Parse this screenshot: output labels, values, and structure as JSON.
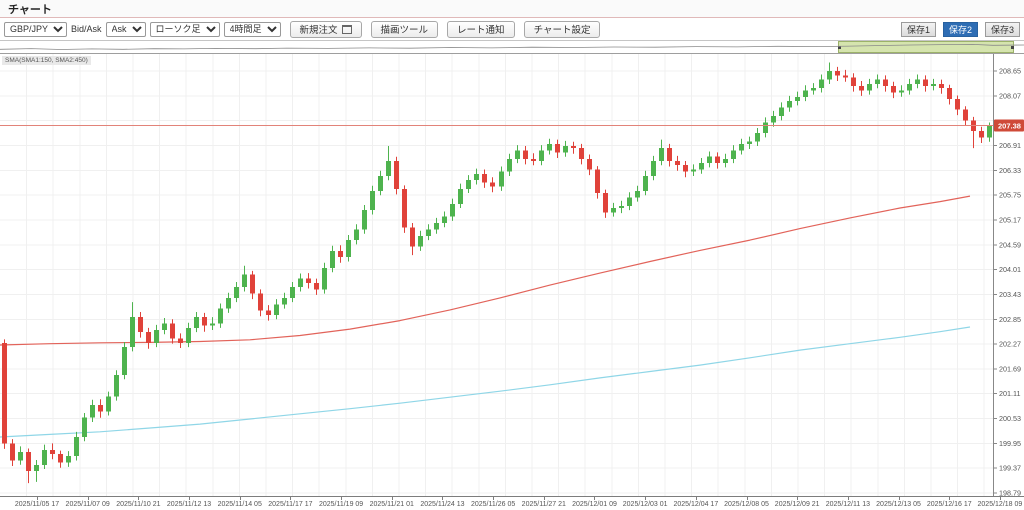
{
  "window": {
    "title": "チャート"
  },
  "toolbar": {
    "symbol": "GBP/JPY",
    "bid_ask_label": "Bid/Ask",
    "bid_ask": "Ask",
    "chart_type": "ローソク足",
    "timeframe": "4時間足",
    "buttons": {
      "new_order": "新規注文",
      "draw_tools": "描画ツール",
      "rate_alert": "レート通知",
      "chart_settings": "チャート設定"
    },
    "save_buttons": [
      {
        "label": "保存1",
        "active": false
      },
      {
        "label": "保存2",
        "active": true
      },
      {
        "label": "保存3",
        "active": false
      }
    ]
  },
  "minimap": {
    "selection_start": 0.818,
    "selection_end": 0.99,
    "spark": [
      [
        0,
        0.7
      ],
      [
        0.03,
        0.62
      ],
      [
        0.06,
        0.72
      ],
      [
        0.09,
        0.66
      ],
      [
        0.12,
        0.7
      ],
      [
        0.15,
        0.63
      ],
      [
        0.18,
        0.66
      ],
      [
        0.21,
        0.6
      ],
      [
        0.25,
        0.63
      ],
      [
        0.28,
        0.57
      ],
      [
        0.32,
        0.6
      ],
      [
        0.36,
        0.54
      ],
      [
        0.4,
        0.58
      ],
      [
        0.44,
        0.5
      ],
      [
        0.48,
        0.54
      ],
      [
        0.52,
        0.47
      ],
      [
        0.56,
        0.5
      ],
      [
        0.6,
        0.44
      ],
      [
        0.64,
        0.47
      ],
      [
        0.68,
        0.4
      ],
      [
        0.72,
        0.43
      ],
      [
        0.76,
        0.37
      ],
      [
        0.8,
        0.4
      ],
      [
        0.83,
        0.34
      ],
      [
        0.86,
        0.28
      ],
      [
        0.89,
        0.22
      ],
      [
        0.92,
        0.18
      ],
      [
        0.95,
        0.16
      ],
      [
        0.97,
        0.26
      ],
      [
        1.0,
        0.22
      ]
    ]
  },
  "chart_data": {
    "type": "candlestick",
    "symbol": "GBP/JPY",
    "timeframe": "4時間足",
    "overlay_label": "SMA(SMA1:150, SMA2:450)",
    "ylim": [
      198.72,
      209.05
    ],
    "y_ticks": [
      208.65,
      208.07,
      207.49,
      206.91,
      206.33,
      205.75,
      205.17,
      204.59,
      204.01,
      203.43,
      202.85,
      202.27,
      201.69,
      201.11,
      200.53,
      199.95,
      199.37,
      198.79
    ],
    "x_labels": [
      "2025/11/05 17",
      "2025/11/07 09",
      "2025/11/10 21",
      "2025/11/12 13",
      "2025/11/14 05",
      "2025/11/17 17",
      "2025/11/19 09",
      "2025/11/21 01",
      "2025/11/24 13",
      "2025/11/26 05",
      "2025/11/27 21",
      "2025/12/01 09",
      "2025/12/03 01",
      "2025/12/04 17",
      "2025/12/08 05",
      "2025/12/09 21",
      "2025/12/11 13",
      "2025/12/13 05",
      "2025/12/16 17",
      "2025/12/18 09"
    ],
    "current_price": 207.38,
    "grid": true,
    "legend": "none",
    "candles": [
      [
        202.3,
        202.38,
        199.82,
        199.95
      ],
      [
        199.95,
        200.05,
        199.42,
        199.55
      ],
      [
        199.55,
        199.88,
        199.45,
        199.75
      ],
      [
        199.75,
        199.83,
        199.02,
        199.3
      ],
      [
        199.3,
        199.56,
        199.05,
        199.45
      ],
      [
        199.45,
        199.92,
        199.35,
        199.8
      ],
      [
        199.8,
        199.95,
        199.58,
        199.7
      ],
      [
        199.7,
        199.78,
        199.38,
        199.5
      ],
      [
        199.5,
        199.77,
        199.4,
        199.65
      ],
      [
        199.65,
        200.22,
        199.55,
        200.1
      ],
      [
        200.1,
        200.66,
        200.0,
        200.55
      ],
      [
        200.55,
        200.97,
        200.45,
        200.85
      ],
      [
        200.85,
        200.98,
        200.55,
        200.7
      ],
      [
        200.7,
        201.16,
        200.6,
        201.05
      ],
      [
        201.05,
        201.66,
        200.95,
        201.55
      ],
      [
        201.55,
        202.32,
        201.45,
        202.2
      ],
      [
        202.2,
        203.25,
        202.1,
        202.9
      ],
      [
        202.9,
        203.02,
        202.42,
        202.55
      ],
      [
        202.55,
        202.65,
        202.16,
        202.3
      ],
      [
        202.3,
        202.72,
        202.2,
        202.6
      ],
      [
        202.6,
        202.88,
        202.5,
        202.75
      ],
      [
        202.75,
        202.85,
        202.28,
        202.4
      ],
      [
        202.4,
        202.52,
        202.18,
        202.3
      ],
      [
        202.3,
        202.77,
        202.2,
        202.65
      ],
      [
        202.65,
        203.02,
        202.55,
        202.9
      ],
      [
        202.9,
        203.0,
        202.56,
        202.7
      ],
      [
        202.7,
        202.9,
        202.6,
        202.75
      ],
      [
        202.75,
        203.22,
        202.65,
        203.1
      ],
      [
        203.1,
        203.47,
        203.0,
        203.35
      ],
      [
        203.35,
        203.72,
        203.25,
        203.6
      ],
      [
        203.6,
        204.1,
        203.5,
        203.9
      ],
      [
        203.9,
        203.98,
        203.32,
        203.45
      ],
      [
        203.45,
        203.55,
        202.92,
        203.05
      ],
      [
        203.05,
        203.18,
        202.82,
        202.95
      ],
      [
        202.95,
        203.32,
        202.85,
        203.2
      ],
      [
        203.2,
        203.47,
        203.1,
        203.35
      ],
      [
        203.35,
        203.72,
        203.25,
        203.6
      ],
      [
        203.6,
        203.92,
        203.5,
        203.8
      ],
      [
        203.8,
        203.93,
        203.57,
        203.7
      ],
      [
        203.7,
        203.8,
        203.42,
        203.55
      ],
      [
        203.55,
        204.17,
        203.45,
        204.05
      ],
      [
        204.05,
        204.57,
        203.95,
        204.45
      ],
      [
        204.45,
        204.58,
        204.17,
        204.3
      ],
      [
        204.3,
        204.82,
        204.2,
        204.7
      ],
      [
        204.7,
        205.07,
        204.6,
        204.95
      ],
      [
        204.95,
        205.52,
        204.85,
        205.4
      ],
      [
        205.4,
        205.97,
        205.3,
        205.85
      ],
      [
        205.85,
        206.32,
        205.75,
        206.2
      ],
      [
        206.2,
        206.9,
        206.1,
        206.55
      ],
      [
        206.55,
        206.65,
        205.77,
        205.9
      ],
      [
        205.9,
        205.98,
        204.87,
        205.0
      ],
      [
        205.0,
        205.1,
        204.35,
        204.55
      ],
      [
        204.55,
        204.92,
        204.45,
        204.8
      ],
      [
        204.8,
        205.07,
        204.7,
        204.95
      ],
      [
        204.95,
        205.22,
        204.85,
        205.1
      ],
      [
        205.1,
        205.37,
        205.0,
        205.25
      ],
      [
        205.25,
        205.67,
        205.15,
        205.55
      ],
      [
        205.55,
        206.02,
        205.45,
        205.9
      ],
      [
        205.9,
        206.22,
        205.8,
        206.1
      ],
      [
        206.1,
        206.37,
        206.0,
        206.25
      ],
      [
        206.25,
        206.35,
        205.92,
        206.05
      ],
      [
        206.05,
        206.17,
        205.82,
        205.95
      ],
      [
        205.95,
        206.42,
        205.85,
        206.3
      ],
      [
        206.3,
        206.72,
        206.2,
        206.6
      ],
      [
        206.6,
        206.92,
        206.5,
        206.8
      ],
      [
        206.8,
        206.9,
        206.47,
        206.6
      ],
      [
        206.6,
        206.73,
        206.45,
        206.55
      ],
      [
        206.55,
        206.92,
        206.45,
        206.8
      ],
      [
        206.8,
        207.07,
        206.7,
        206.95
      ],
      [
        206.95,
        207.05,
        206.62,
        206.75
      ],
      [
        206.75,
        207.02,
        206.65,
        206.9
      ],
      [
        206.9,
        207.0,
        206.72,
        206.85
      ],
      [
        206.85,
        206.95,
        206.47,
        206.6
      ],
      [
        206.6,
        206.7,
        206.22,
        206.35
      ],
      [
        206.35,
        206.43,
        205.67,
        205.8
      ],
      [
        205.8,
        205.88,
        205.22,
        205.35
      ],
      [
        205.35,
        205.57,
        205.25,
        205.45
      ],
      [
        205.45,
        205.62,
        205.33,
        205.5
      ],
      [
        205.5,
        205.82,
        205.4,
        205.7
      ],
      [
        205.7,
        205.97,
        205.6,
        205.85
      ],
      [
        205.85,
        206.32,
        205.75,
        206.2
      ],
      [
        206.2,
        206.67,
        206.1,
        206.55
      ],
      [
        206.55,
        207.05,
        206.45,
        206.85
      ],
      [
        206.85,
        206.95,
        206.42,
        206.55
      ],
      [
        206.55,
        206.67,
        206.32,
        206.45
      ],
      [
        206.45,
        206.55,
        206.17,
        206.3
      ],
      [
        206.3,
        206.47,
        206.2,
        206.35
      ],
      [
        206.35,
        206.62,
        206.25,
        206.5
      ],
      [
        206.5,
        206.77,
        206.4,
        206.65
      ],
      [
        206.65,
        206.75,
        206.37,
        206.5
      ],
      [
        206.5,
        206.72,
        206.4,
        206.6
      ],
      [
        206.6,
        206.92,
        206.5,
        206.8
      ],
      [
        206.8,
        207.07,
        206.7,
        206.95
      ],
      [
        206.95,
        207.12,
        206.83,
        207.0
      ],
      [
        207.0,
        207.32,
        206.9,
        207.2
      ],
      [
        207.2,
        207.57,
        207.1,
        207.45
      ],
      [
        207.45,
        207.72,
        207.35,
        207.6
      ],
      [
        207.6,
        207.92,
        207.5,
        207.8
      ],
      [
        207.8,
        208.07,
        207.7,
        207.95
      ],
      [
        207.95,
        208.17,
        207.85,
        208.05
      ],
      [
        208.05,
        208.32,
        207.95,
        208.2
      ],
      [
        208.2,
        208.37,
        208.1,
        208.25
      ],
      [
        208.25,
        208.57,
        208.15,
        208.45
      ],
      [
        208.45,
        208.85,
        208.35,
        208.65
      ],
      [
        208.65,
        208.75,
        208.42,
        208.55
      ],
      [
        208.55,
        208.68,
        208.4,
        208.5
      ],
      [
        208.5,
        208.6,
        208.17,
        208.3
      ],
      [
        208.3,
        208.42,
        208.07,
        208.2
      ],
      [
        208.2,
        208.47,
        208.1,
        208.35
      ],
      [
        208.35,
        208.57,
        208.25,
        208.45
      ],
      [
        208.45,
        208.55,
        208.17,
        208.3
      ],
      [
        208.3,
        208.4,
        208.02,
        208.15
      ],
      [
        208.15,
        208.32,
        208.05,
        208.2
      ],
      [
        208.2,
        208.47,
        208.1,
        208.35
      ],
      [
        208.35,
        208.57,
        208.25,
        208.45
      ],
      [
        208.45,
        208.55,
        208.17,
        208.3
      ],
      [
        208.3,
        208.47,
        208.2,
        208.35
      ],
      [
        208.35,
        208.45,
        208.12,
        208.25
      ],
      [
        208.25,
        208.33,
        207.87,
        208.0
      ],
      [
        208.0,
        208.08,
        207.62,
        207.75
      ],
      [
        207.75,
        207.83,
        207.37,
        207.5
      ],
      [
        207.5,
        207.58,
        206.85,
        207.25
      ],
      [
        207.25,
        207.35,
        206.97,
        207.1
      ],
      [
        207.1,
        207.45,
        207.0,
        207.38
      ]
    ],
    "sma1": {
      "name": "SMA1 (150)",
      "color": "#e2635a",
      "points": [
        [
          0,
          202.25
        ],
        [
          50,
          202.28
        ],
        [
          100,
          202.3
        ],
        [
          150,
          202.31
        ],
        [
          200,
          202.33
        ],
        [
          250,
          202.37
        ],
        [
          300,
          202.47
        ],
        [
          350,
          202.62
        ],
        [
          400,
          202.82
        ],
        [
          450,
          203.07
        ],
        [
          500,
          203.35
        ],
        [
          550,
          203.65
        ],
        [
          600,
          203.93
        ],
        [
          650,
          204.2
        ],
        [
          700,
          204.46
        ],
        [
          750,
          204.7
        ],
        [
          800,
          204.97
        ],
        [
          850,
          205.22
        ],
        [
          900,
          205.45
        ],
        [
          940,
          205.6
        ],
        [
          970,
          205.73
        ]
      ]
    },
    "sma2": {
      "name": "SMA2 (450)",
      "color": "#8fd6e7",
      "points": [
        [
          0,
          200.1
        ],
        [
          50,
          200.16
        ],
        [
          100,
          200.22
        ],
        [
          150,
          200.31
        ],
        [
          200,
          200.4
        ],
        [
          250,
          200.52
        ],
        [
          300,
          200.64
        ],
        [
          350,
          200.76
        ],
        [
          400,
          200.89
        ],
        [
          450,
          201.03
        ],
        [
          500,
          201.17
        ],
        [
          550,
          201.32
        ],
        [
          600,
          201.48
        ],
        [
          650,
          201.63
        ],
        [
          700,
          201.78
        ],
        [
          750,
          201.95
        ],
        [
          800,
          202.13
        ],
        [
          850,
          202.28
        ],
        [
          900,
          202.43
        ],
        [
          940,
          202.56
        ],
        [
          970,
          202.67
        ]
      ]
    },
    "colors": {
      "up": "#4eb34e",
      "down": "#e0423a",
      "current_price_line": "#e28379",
      "current_price_label_bg": "#cf4a38",
      "grid": "#f0f0f0",
      "axis_line": "#888888",
      "axis_text": "#555555"
    }
  }
}
